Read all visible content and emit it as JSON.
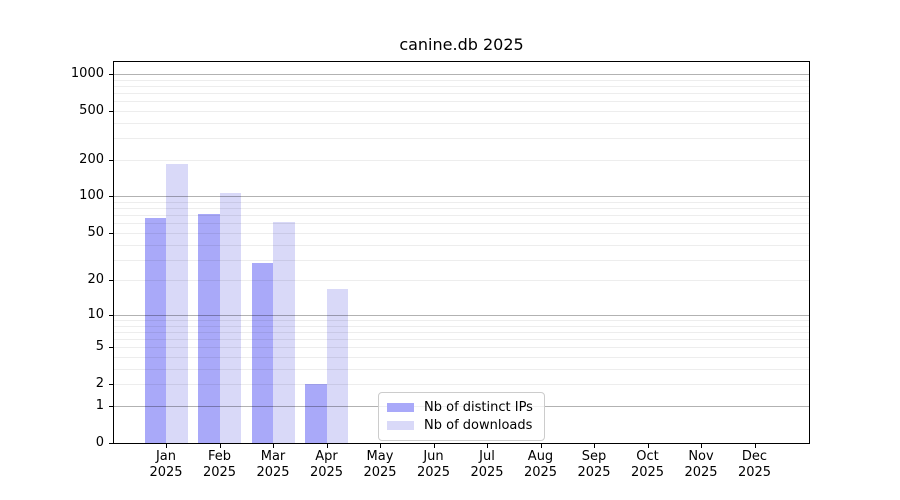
{
  "title": "canine.db 2025",
  "chart_data": {
    "type": "bar",
    "title": "canine.db 2025",
    "y_scale": "log10(value+1)",
    "ylim": [
      0,
      1250
    ],
    "grid": "major dark + minor light, horizontal only",
    "legend_position": "lower center inside plot",
    "categories": [
      "Jan",
      "Feb",
      "Mar",
      "Apr",
      "May",
      "Jun",
      "Jul",
      "Aug",
      "Sep",
      "Oct",
      "Nov",
      "Dec"
    ],
    "x_year": "2025",
    "series": [
      {
        "name": "Nb of distinct IPs",
        "color": "#a9a9f9",
        "values": [
          67,
          72,
          28,
          2,
          0,
          0,
          0,
          0,
          0,
          0,
          0,
          0
        ]
      },
      {
        "name": "Nb of downloads",
        "color": "#d9d9f8",
        "values": [
          183,
          106,
          62,
          17,
          0,
          0,
          0,
          0,
          0,
          0,
          0,
          0
        ]
      }
    ],
    "y_ticks": [
      0,
      1,
      2,
      5,
      10,
      20,
      50,
      100,
      200,
      500,
      1000
    ],
    "y_major_gridlines": [
      1,
      10,
      100,
      1000
    ],
    "y_minor_gridlines": [
      2,
      3,
      4,
      5,
      6,
      7,
      8,
      9,
      20,
      30,
      40,
      50,
      60,
      70,
      80,
      90,
      200,
      300,
      400,
      500,
      600,
      700,
      800,
      900
    ]
  },
  "colors": {
    "background": "#ffffff",
    "axis_frame": "#000000",
    "series_ips": "#a9a9f9",
    "series_downloads": "#d9d9f8",
    "legend_border": "#cccccc"
  }
}
